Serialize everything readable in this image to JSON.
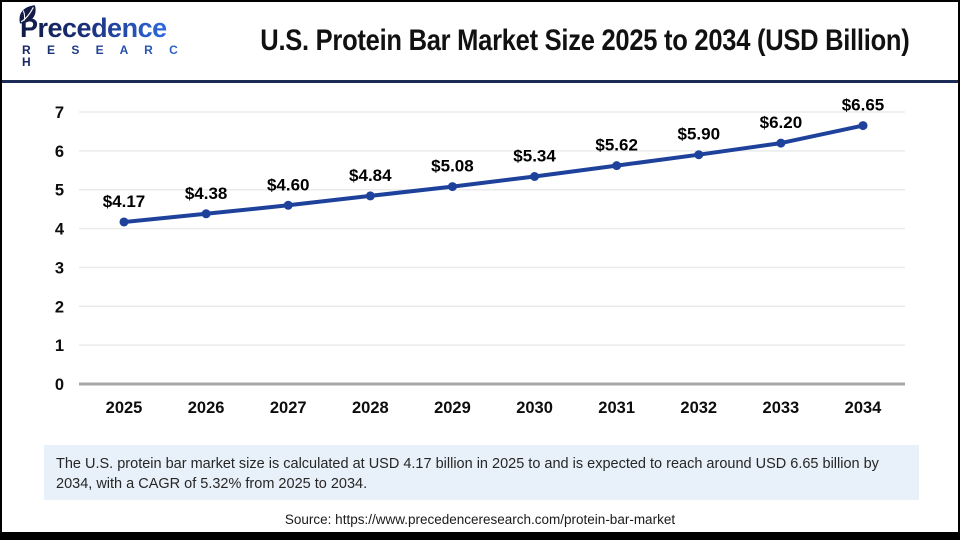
{
  "header": {
    "logo": {
      "line1": "Precedence",
      "line2": "R E S E A R C H"
    },
    "title": "U.S. Protein Bar Market Size 2025 to 2034 (USD Billion)"
  },
  "chart_data": {
    "type": "line",
    "title": "U.S. Protein Bar Market Size 2025 to 2034 (USD Billion)",
    "categories": [
      "2025",
      "2026",
      "2027",
      "2028",
      "2029",
      "2030",
      "2031",
      "2032",
      "2033",
      "2034"
    ],
    "series": [
      {
        "name": "U.S. Protein Bar Market Size (USD Billion)",
        "values": [
          4.17,
          4.38,
          4.6,
          4.84,
          5.08,
          5.34,
          5.62,
          5.9,
          6.2,
          6.65
        ]
      }
    ],
    "point_labels": [
      "$4.17",
      "$4.38",
      "$4.60",
      "$4.84",
      "$5.08",
      "$5.34",
      "$5.62",
      "$5.90",
      "$6.20",
      "$6.65"
    ],
    "xlabel": "",
    "ylabel": "",
    "ylim": [
      0,
      7
    ],
    "ytick_step": 1,
    "grid": true,
    "legend": "none",
    "line_color": "#1e429b",
    "point_color": "#1e429b",
    "grid_color": "#ebebeb",
    "baseline_color": "#a6a6a6",
    "tick_label_color": "#0d0d0d",
    "data_label_color": "#000000"
  },
  "note": {
    "text": "The U.S. protein bar market size is calculated at USD 4.17 billion in 2025 to and is expected to reach around USD 6.65 billion by 2034, with a CAGR of 5.32% from 2025 to 2034.",
    "bg_color": "#e8f1f9"
  },
  "source": {
    "text": "Source: https://www.precedenceresearch.com/protein-bar-market"
  },
  "colors": {
    "divider": "#1b2b56",
    "frame": "#000000"
  }
}
